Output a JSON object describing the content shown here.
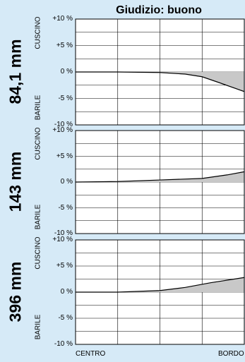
{
  "title": "Giudizio: buono",
  "x_labels": {
    "left": "CENTRO",
    "right": "BORDO"
  },
  "colors": {
    "background": "#d6eaf7",
    "fill": "#c8c8c8",
    "grid": "#000000"
  },
  "chart_data": [
    {
      "type": "area",
      "label": "84,1 mm",
      "top_label": "CUSCINO",
      "bottom_label": "BARILE",
      "yticks": [
        "+10 %",
        "+5 %",
        "0 %",
        "-5 %",
        "-10 %"
      ],
      "ylim": [
        -10,
        10
      ],
      "xlim": [
        0,
        1
      ],
      "x": [
        0,
        0.25,
        0.5,
        0.65,
        0.75,
        0.85,
        1.0
      ],
      "y": [
        0,
        0,
        -0.1,
        -0.4,
        -0.9,
        -2.0,
        -3.7
      ]
    },
    {
      "type": "area",
      "label": "143 mm",
      "top_label": "CUSCINO",
      "bottom_label": "BARILE",
      "yticks": [
        "+10 %",
        "+5 %",
        "0 %",
        "-5 %",
        "-10 %"
      ],
      "ylim": [
        -10,
        10
      ],
      "xlim": [
        0,
        1
      ],
      "x": [
        0,
        0.25,
        0.5,
        0.75,
        0.9,
        1.0
      ],
      "y": [
        0,
        0.1,
        0.4,
        0.7,
        1.4,
        2.0
      ]
    },
    {
      "type": "area",
      "label": "396 mm",
      "top_label": "CUSCINO",
      "bottom_label": "BARILE",
      "yticks": [
        "+10 %",
        "+5 %",
        "0 %",
        "-5 %",
        "-10 %"
      ],
      "ylim": [
        -10,
        10
      ],
      "xlim": [
        0,
        1
      ],
      "x": [
        0,
        0.25,
        0.5,
        0.65,
        0.8,
        1.0
      ],
      "y": [
        0,
        0,
        0.3,
        0.9,
        1.8,
        2.8
      ]
    }
  ]
}
